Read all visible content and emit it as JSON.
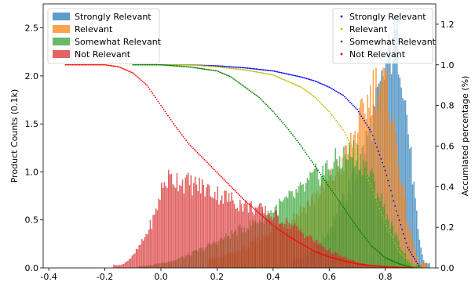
{
  "chart_data": {
    "type": "histogram+scatter",
    "ylabel_left": "Product Counts (0.1k)",
    "ylabel_right": "Accumlated percentage (%)",
    "xlim": [
      -0.42,
      0.98
    ],
    "ylim_left": [
      0,
      2.75
    ],
    "ylim_right": [
      0,
      1.3
    ],
    "x_ticks": [
      -0.4,
      -0.2,
      0.0,
      0.2,
      0.4,
      0.6,
      0.8
    ],
    "y_left_ticks": [
      0.0,
      0.5,
      1.0,
      1.5,
      2.0,
      2.5
    ],
    "y_right_ticks": [
      0.0,
      0.2,
      0.4,
      0.6,
      0.8,
      1.0,
      1.2
    ],
    "histogram_legend_position": "upper-left",
    "scatter_legend_position": "upper-right",
    "histogram_series": [
      {
        "name": "Strongly Relevant",
        "color": "#1f77b4",
        "x": [
          0.5,
          0.55,
          0.6,
          0.65,
          0.7,
          0.72,
          0.74,
          0.76,
          0.78,
          0.8,
          0.82,
          0.84,
          0.86,
          0.88,
          0.9,
          0.92,
          0.94
        ],
        "values": [
          0.1,
          0.2,
          0.4,
          0.7,
          1.0,
          1.2,
          1.4,
          1.6,
          1.8,
          2.05,
          2.25,
          2.4,
          2.1,
          1.5,
          0.9,
          0.3,
          0.05
        ]
      },
      {
        "name": "Relevant",
        "color": "#ff7f0e",
        "x": [
          0.2,
          0.3,
          0.4,
          0.5,
          0.55,
          0.6,
          0.65,
          0.68,
          0.7,
          0.72,
          0.74,
          0.76,
          0.78,
          0.8,
          0.82,
          0.84,
          0.86,
          0.88,
          0.9,
          0.92
        ],
        "values": [
          0.1,
          0.2,
          0.4,
          0.6,
          0.75,
          0.9,
          1.1,
          1.3,
          1.45,
          1.6,
          1.75,
          1.9,
          1.95,
          1.9,
          1.7,
          1.3,
          0.9,
          0.5,
          0.25,
          0.05
        ]
      },
      {
        "name": "Somewhat Relevant",
        "color": "#2ca02c",
        "x": [
          -0.05,
          0.05,
          0.15,
          0.25,
          0.35,
          0.45,
          0.5,
          0.55,
          0.6,
          0.65,
          0.68,
          0.7,
          0.72,
          0.75,
          0.78,
          0.8,
          0.82,
          0.85,
          0.88,
          0.9
        ],
        "values": [
          0.02,
          0.08,
          0.2,
          0.35,
          0.5,
          0.7,
          0.8,
          0.95,
          1.05,
          1.15,
          1.2,
          1.2,
          1.1,
          0.95,
          0.75,
          0.6,
          0.45,
          0.25,
          0.1,
          0.03
        ]
      },
      {
        "name": "Not Relevant",
        "color": "#d62728",
        "x": [
          -0.14,
          -0.1,
          -0.06,
          -0.02,
          0.0,
          0.02,
          0.04,
          0.06,
          0.08,
          0.1,
          0.14,
          0.18,
          0.22,
          0.26,
          0.3,
          0.34,
          0.38,
          0.42,
          0.46,
          0.5,
          0.54,
          0.58,
          0.62,
          0.66,
          0.7,
          0.74,
          0.78
        ],
        "values": [
          0.03,
          0.12,
          0.3,
          0.55,
          0.8,
          0.92,
          0.93,
          0.92,
          0.9,
          0.88,
          0.85,
          0.8,
          0.75,
          0.7,
          0.65,
          0.62,
          0.57,
          0.52,
          0.45,
          0.38,
          0.3,
          0.22,
          0.15,
          0.1,
          0.06,
          0.03,
          0.01
        ]
      }
    ],
    "scatter_series": [
      {
        "name": "Strongly Relevant",
        "color": "#0000ff",
        "x": [
          0.0,
          0.1,
          0.2,
          0.3,
          0.4,
          0.5,
          0.55,
          0.6,
          0.65,
          0.7,
          0.75,
          0.8,
          0.84,
          0.88,
          0.92
        ],
        "values": [
          1.0,
          1.0,
          0.995,
          0.985,
          0.97,
          0.94,
          0.92,
          0.89,
          0.85,
          0.78,
          0.67,
          0.48,
          0.28,
          0.1,
          0.01
        ]
      },
      {
        "name": "Relevant",
        "color": "#bfbf00",
        "x": [
          -0.05,
          0.1,
          0.2,
          0.3,
          0.4,
          0.5,
          0.55,
          0.6,
          0.65,
          0.7,
          0.75,
          0.8,
          0.85,
          0.9
        ],
        "values": [
          1.0,
          1.0,
          0.99,
          0.975,
          0.95,
          0.89,
          0.84,
          0.77,
          0.68,
          0.55,
          0.4,
          0.22,
          0.08,
          0.01
        ]
      },
      {
        "name": "Somewhat Relevant",
        "color": "#008000",
        "x": [
          -0.1,
          0.0,
          0.1,
          0.2,
          0.25,
          0.3,
          0.35,
          0.4,
          0.45,
          0.5,
          0.55,
          0.6,
          0.65,
          0.7,
          0.75,
          0.8,
          0.85,
          0.9
        ],
        "values": [
          1.0,
          1.0,
          0.99,
          0.97,
          0.94,
          0.89,
          0.84,
          0.77,
          0.69,
          0.6,
          0.5,
          0.4,
          0.3,
          0.2,
          0.11,
          0.05,
          0.02,
          0.0
        ]
      },
      {
        "name": "Not Relevant",
        "color": "#ff0000",
        "x": [
          -0.34,
          -0.3,
          -0.2,
          -0.15,
          -0.1,
          -0.05,
          0.0,
          0.05,
          0.1,
          0.15,
          0.2,
          0.25,
          0.3,
          0.35,
          0.4,
          0.45,
          0.5,
          0.55,
          0.6,
          0.65,
          0.7,
          0.75,
          0.8,
          0.85,
          0.9
        ],
        "values": [
          1.0,
          1.0,
          1.0,
          0.99,
          0.96,
          0.9,
          0.8,
          0.7,
          0.61,
          0.54,
          0.47,
          0.4,
          0.33,
          0.27,
          0.21,
          0.16,
          0.12,
          0.08,
          0.055,
          0.035,
          0.02,
          0.012,
          0.006,
          0.003,
          0.001
        ]
      }
    ]
  }
}
